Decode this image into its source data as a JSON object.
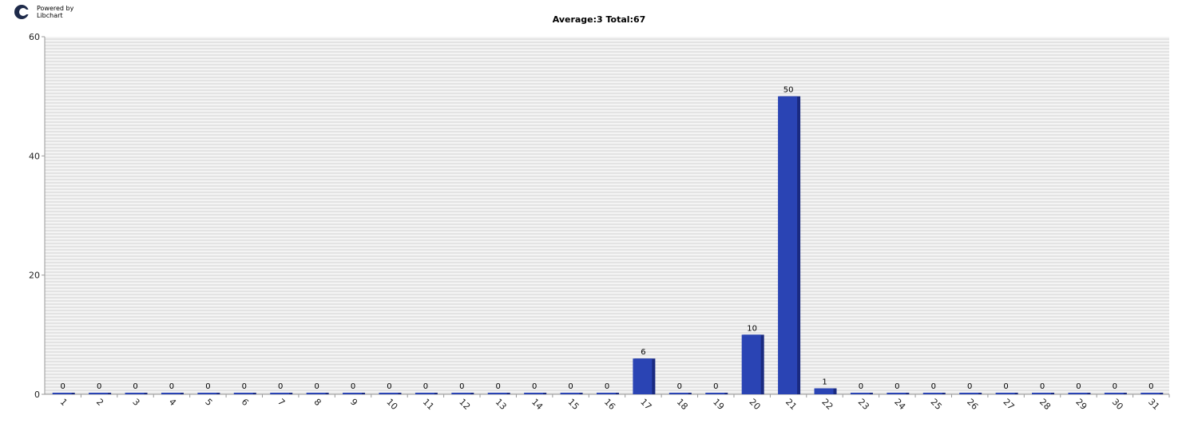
{
  "logo": {
    "line1": "Powered by",
    "line2": "Libchart"
  },
  "chart_data": {
    "type": "bar",
    "title": "Average:3   Total:67",
    "xlabel": "",
    "ylabel": "",
    "categories": [
      "1",
      "2",
      "3",
      "4",
      "5",
      "6",
      "7",
      "8",
      "9",
      "10",
      "11",
      "12",
      "13",
      "14",
      "15",
      "16",
      "17",
      "18",
      "19",
      "20",
      "21",
      "22",
      "23",
      "24",
      "25",
      "26",
      "27",
      "28",
      "29",
      "30",
      "31"
    ],
    "values": [
      0,
      0,
      0,
      0,
      0,
      0,
      0,
      0,
      0,
      0,
      0,
      0,
      0,
      0,
      0,
      0,
      6,
      0,
      0,
      10,
      50,
      1,
      0,
      0,
      0,
      0,
      0,
      0,
      0,
      0,
      0
    ],
    "ylim": [
      0,
      60
    ],
    "yticks": [
      0,
      20,
      40,
      60
    ],
    "bar_color": "#2a44b4",
    "grid": "horizontal-stripes",
    "legend": "none"
  }
}
